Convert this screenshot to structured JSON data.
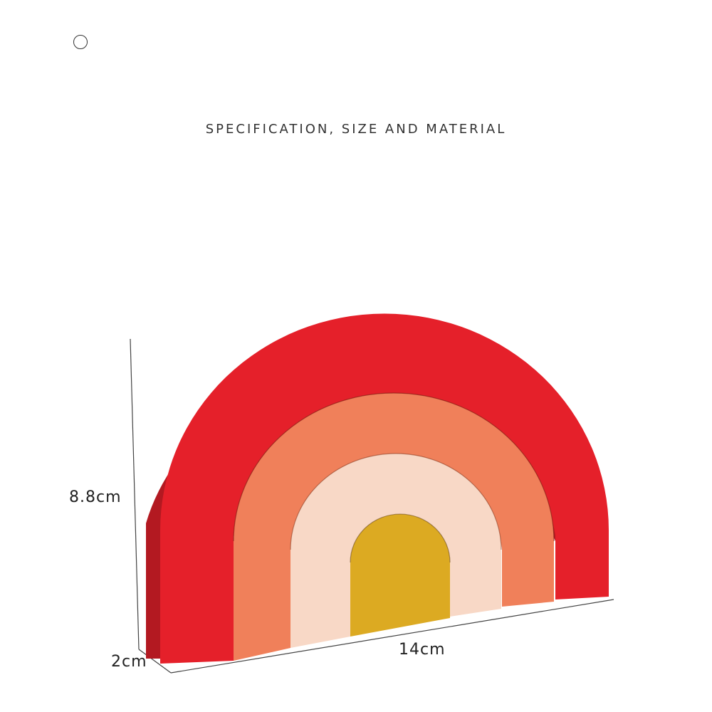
{
  "header": {
    "circle_icon": "circle-outline-icon",
    "title": "SPECIFICATION, SIZE AND MATERIAL"
  },
  "product": {
    "colors": {
      "outer_arch": "#e5202a",
      "second_arch": "#f0805a",
      "third_arch": "#f8d8c6",
      "inner_arch": "#dcaa22"
    }
  },
  "dimensions": {
    "height": "8.8cm",
    "width": "14cm",
    "depth": "2cm"
  }
}
